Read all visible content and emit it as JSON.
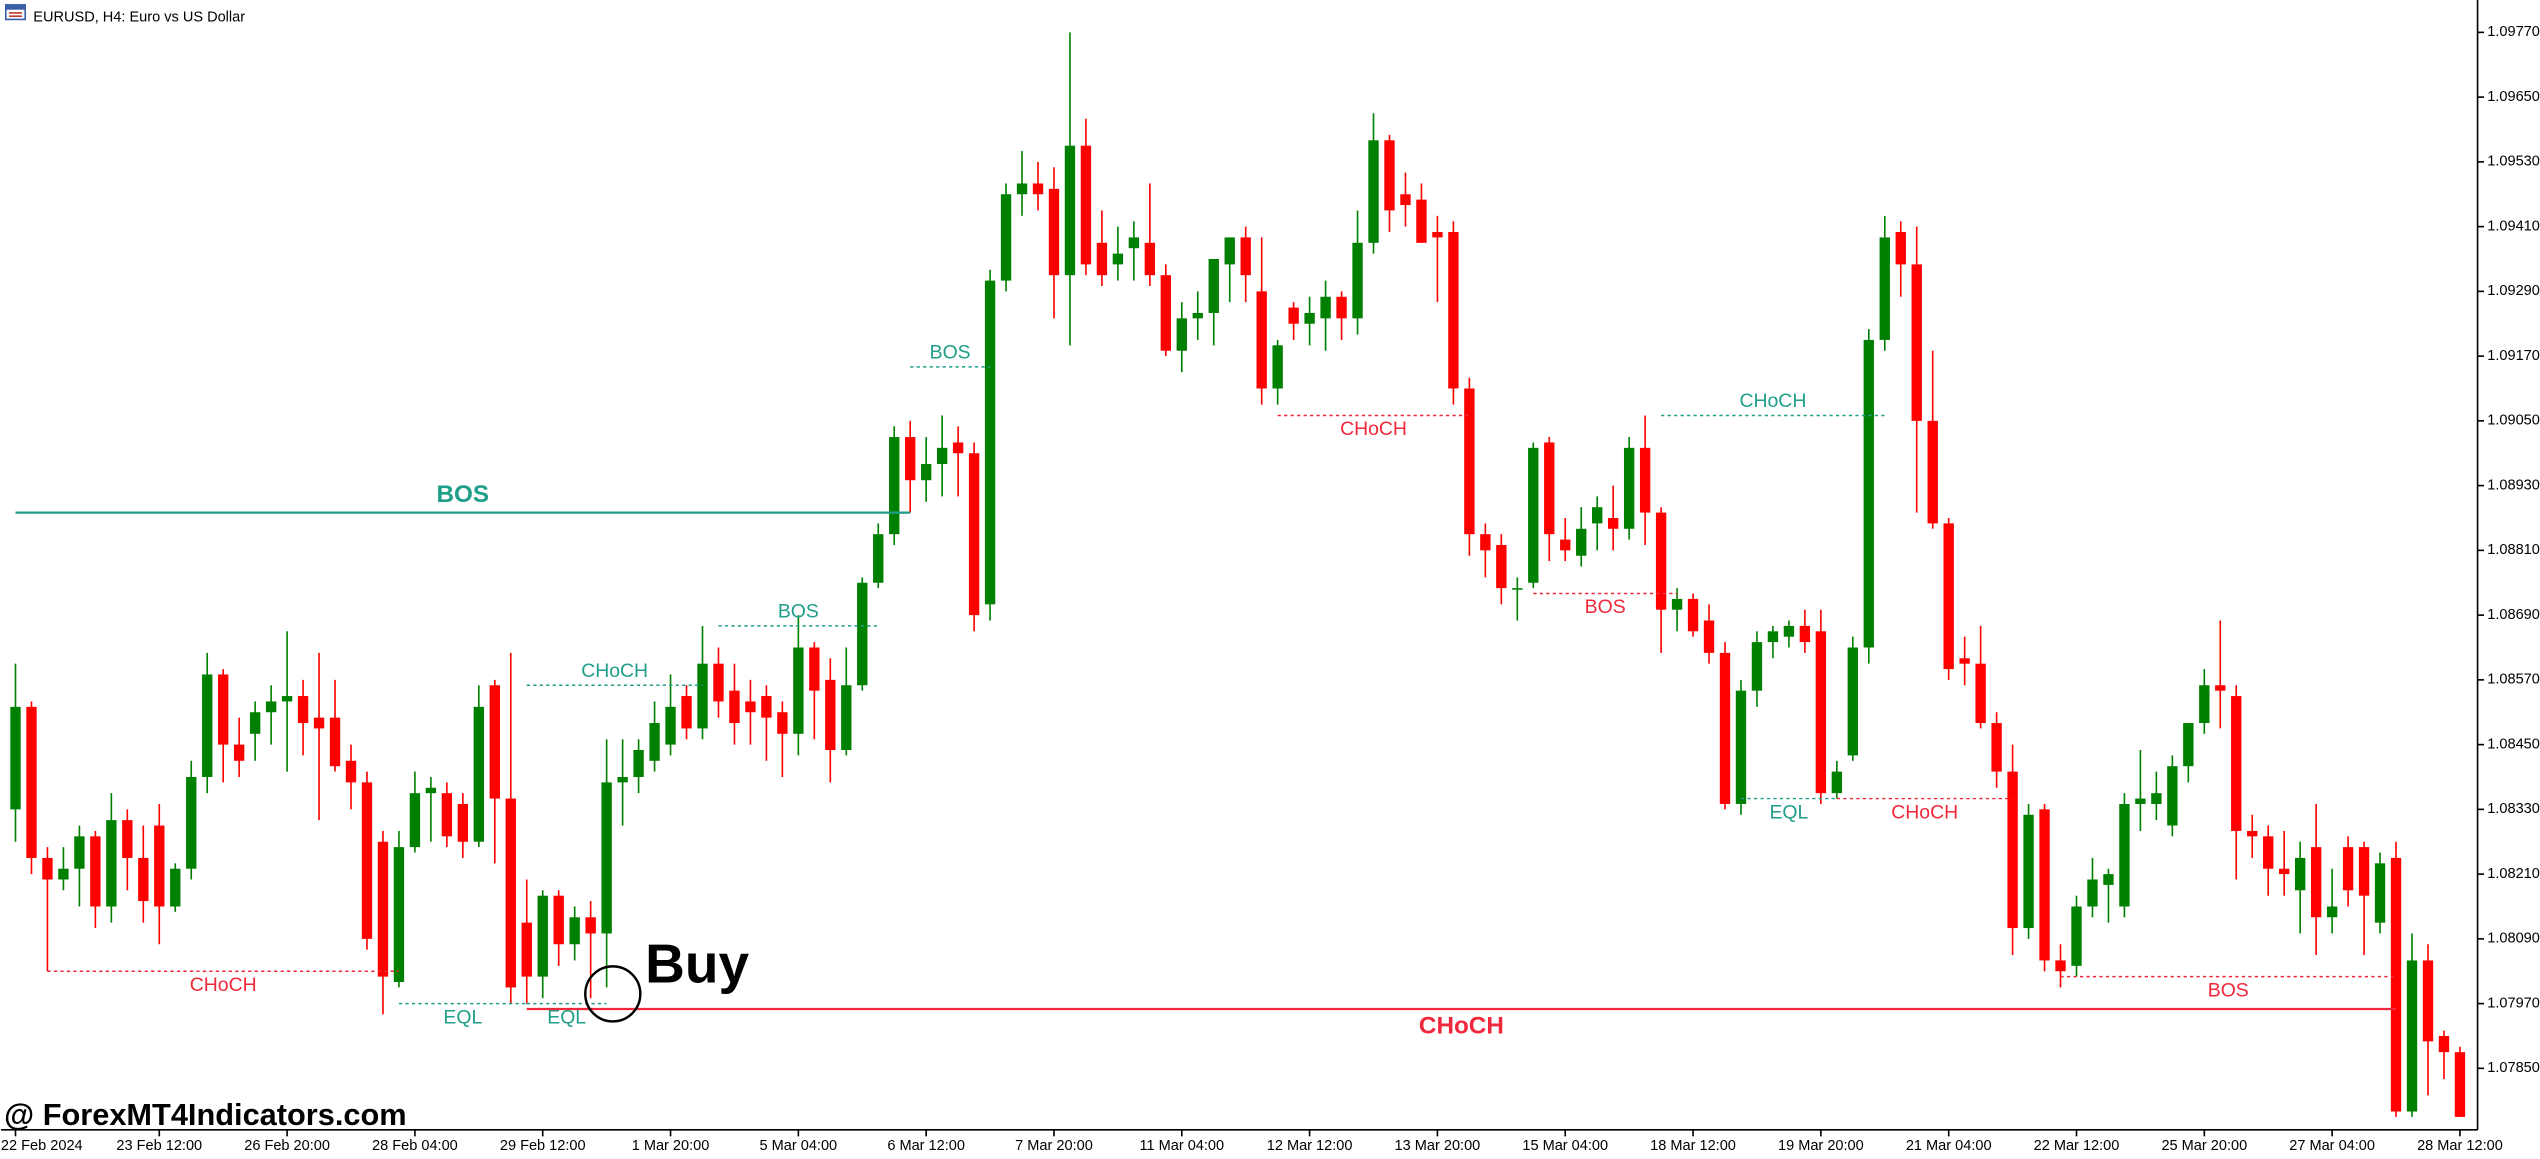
{
  "chart_data": {
    "type": "candlestick",
    "title": "EURUSD, H4:  Euro vs US Dollar",
    "watermark": "@ ForexMT4Indicators.com",
    "signal": "Buy",
    "up_color": "#008000",
    "down_color": "#ff0000",
    "categories": [
      "22 Feb 2024",
      null,
      null,
      null,
      null,
      null,
      null,
      null,
      null,
      "23 Feb 12:00",
      null,
      null,
      null,
      null,
      null,
      null,
      null,
      "26 Feb 20:00",
      null,
      null,
      null,
      null,
      null,
      null,
      null,
      "28 Feb 04:00",
      null,
      null,
      null,
      null,
      null,
      null,
      null,
      "29 Feb 12:00",
      null,
      null,
      null,
      null,
      null,
      null,
      null,
      "1 Mar 20:00",
      null,
      null,
      null,
      null,
      null,
      null,
      null,
      "5 Mar 04:00",
      null,
      null,
      null,
      null,
      null,
      null,
      null,
      "6 Mar 12:00",
      null,
      null,
      null,
      null,
      null,
      null,
      null,
      "7 Mar 20:00",
      null,
      null,
      null,
      null,
      null,
      null,
      null,
      "11 Mar 04:00",
      null,
      null,
      null,
      null,
      null,
      null,
      null,
      "12 Mar 12:00",
      null,
      null,
      null,
      null,
      null,
      null,
      null,
      "13 Mar 20:00",
      null,
      null,
      null,
      null,
      null,
      null,
      null,
      "15 Mar 04:00",
      null,
      null,
      null,
      null,
      null,
      null,
      null,
      "18 Mar 12:00",
      null,
      null,
      null,
      null,
      null,
      null,
      null,
      "19 Mar 20:00",
      null,
      null,
      null,
      null,
      null,
      null,
      null,
      "21 Mar 04:00",
      null,
      null,
      null,
      null,
      null,
      null,
      null,
      "22 Mar 12:00",
      null,
      null,
      null,
      null,
      null,
      null,
      null,
      "25 Mar 20:00",
      null,
      null,
      null,
      null,
      null,
      null,
      null,
      "27 Mar 04:00",
      null,
      null,
      null,
      null,
      null,
      null,
      null,
      "28 Mar 12:00"
    ],
    "open": [
      1.0833,
      1.0852,
      1.0824,
      1.082,
      1.0822,
      1.0828,
      1.0815,
      1.0831,
      1.0824,
      1.083,
      1.0815,
      1.0822,
      1.0839,
      1.0858,
      1.0845,
      1.0847,
      1.0851,
      1.0853,
      1.0854,
      1.085,
      1.085,
      1.0842,
      1.0838,
      1.0827,
      1.0801,
      1.0826,
      1.0836,
      1.0836,
      1.0834,
      1.0827,
      1.0856,
      1.0835,
      1.0812,
      1.0802,
      1.0817,
      1.0808,
      1.0813,
      1.081,
      1.0838,
      1.0839,
      1.0842,
      1.0845,
      1.0854,
      1.0848,
      1.086,
      1.0855,
      1.0853,
      1.0854,
      1.0851,
      1.0847,
      1.0863,
      1.0857,
      1.0844,
      1.0856,
      1.0875,
      1.0884,
      1.0902,
      1.0894,
      1.0897,
      1.0901,
      1.0899,
      1.0871,
      1.0931,
      1.0947,
      1.0949,
      1.0948,
      1.0932,
      1.0956,
      1.0938,
      1.0934,
      1.0937,
      1.0938,
      1.0932,
      1.0918,
      1.0924,
      1.0925,
      1.0934,
      1.0939,
      1.0929,
      1.0911,
      1.0926,
      1.0923,
      1.0924,
      1.0928,
      1.0924,
      1.0938,
      1.0957,
      1.0947,
      1.0946,
      1.094,
      1.094,
      1.0911,
      1.0884,
      1.0882,
      1.0874,
      1.0875,
      1.0901,
      1.0883,
      1.088,
      1.0886,
      1.0887,
      1.0885,
      1.09,
      1.0888,
      1.087,
      1.0872,
      1.0868,
      1.0862,
      1.0834,
      1.0855,
      1.0864,
      1.0865,
      1.0867,
      1.0866,
      1.0836,
      1.0843,
      1.0863,
      1.092,
      1.094,
      1.0934,
      1.0905,
      1.0886,
      1.0861,
      1.086,
      1.0849,
      1.084,
      1.0811,
      1.0833,
      1.0805,
      1.0804,
      1.0815,
      1.0819,
      1.0815,
      1.0834,
      1.0834,
      1.083,
      1.0841,
      1.0849,
      1.0856,
      1.0854,
      1.0829,
      1.0828,
      1.0822,
      1.0818,
      1.0826,
      1.0813,
      1.0826,
      1.0826,
      1.0812,
      1.0824,
      1.0777,
      1.0805,
      1.0791,
      1.0788
    ],
    "high": [
      1.086,
      1.0853,
      1.0826,
      1.0826,
      1.083,
      1.0829,
      1.0836,
      1.0833,
      1.083,
      1.0834,
      1.0823,
      1.0842,
      1.0862,
      1.0859,
      1.085,
      1.0853,
      1.0856,
      1.0866,
      1.0857,
      1.0862,
      1.0857,
      1.0845,
      1.084,
      1.0829,
      1.0829,
      1.084,
      1.0839,
      1.0838,
      1.0836,
      1.0856,
      1.0857,
      1.0862,
      1.082,
      1.0818,
      1.0818,
      1.0815,
      1.0816,
      1.0846,
      1.0846,
      1.0846,
      1.0853,
      1.0858,
      1.0856,
      1.0867,
      1.0863,
      1.086,
      1.0857,
      1.0856,
      1.0853,
      1.0869,
      1.0864,
      1.0861,
      1.0863,
      1.0876,
      1.0886,
      1.0904,
      1.0905,
      1.0902,
      1.0906,
      1.0904,
      1.0901,
      1.0933,
      1.0949,
      1.0955,
      1.0953,
      1.0952,
      1.0977,
      1.0961,
      1.0944,
      1.0941,
      1.0942,
      1.0949,
      1.0934,
      1.0927,
      1.0929,
      1.0935,
      1.0939,
      1.0941,
      1.0939,
      1.092,
      1.0927,
      1.0928,
      1.0931,
      1.0929,
      1.0944,
      1.0962,
      1.0958,
      1.0951,
      1.0949,
      1.0943,
      1.0942,
      1.0913,
      1.0886,
      1.0884,
      1.0876,
      1.0901,
      1.0902,
      1.0887,
      1.0889,
      1.0891,
      1.0893,
      1.0902,
      1.0906,
      1.0889,
      1.0874,
      1.0873,
      1.0871,
      1.0864,
      1.0857,
      1.0866,
      1.0867,
      1.0868,
      1.087,
      1.087,
      1.0842,
      1.0865,
      1.0922,
      1.0943,
      1.0942,
      1.0941,
      1.0918,
      1.0887,
      1.0865,
      1.0867,
      1.0851,
      1.0845,
      1.0834,
      1.0834,
      1.0808,
      1.0817,
      1.0824,
      1.0822,
      1.0836,
      1.0844,
      1.084,
      1.0843,
      1.0848,
      1.0859,
      1.0868,
      1.0856,
      1.0832,
      1.083,
      1.0829,
      1.0827,
      1.0834,
      1.0822,
      1.0828,
      1.0827,
      1.0825,
      1.0827,
      1.081,
      1.0808,
      1.0792,
      1.0789
    ],
    "low": [
      1.0827,
      1.0821,
      1.0803,
      1.0818,
      1.0815,
      1.0811,
      1.0812,
      1.0818,
      1.0812,
      1.0808,
      1.0814,
      1.082,
      1.0836,
      1.0838,
      1.0839,
      1.0842,
      1.0845,
      1.084,
      1.0843,
      1.0831,
      1.084,
      1.0833,
      1.0807,
      1.0795,
      1.08,
      1.0825,
      1.0827,
      1.0826,
      1.0824,
      1.0826,
      1.0823,
      1.0797,
      1.0797,
      1.0798,
      1.0804,
      1.0805,
      1.0798,
      1.08,
      1.083,
      1.0836,
      1.084,
      1.0843,
      1.0846,
      1.0846,
      1.085,
      1.0845,
      1.0845,
      1.0842,
      1.0839,
      1.0843,
      1.0846,
      1.0838,
      1.0843,
      1.0855,
      1.0874,
      1.0882,
      1.0888,
      1.089,
      1.0891,
      1.0891,
      1.0866,
      1.0868,
      1.0929,
      1.0943,
      1.0944,
      1.0924,
      1.0919,
      1.0932,
      1.093,
      1.0931,
      1.0931,
      1.093,
      1.0917,
      1.0914,
      1.092,
      1.0919,
      1.0927,
      1.0927,
      1.0908,
      1.0908,
      1.092,
      1.0919,
      1.0918,
      1.092,
      1.0921,
      1.0936,
      1.094,
      1.0941,
      1.0938,
      1.0927,
      1.0908,
      1.088,
      1.0876,
      1.0871,
      1.0868,
      1.0874,
      1.0879,
      1.0879,
      1.0878,
      1.0881,
      1.0881,
      1.0883,
      1.0882,
      1.0862,
      1.0866,
      1.0865,
      1.086,
      1.0833,
      1.0832,
      1.0852,
      1.0861,
      1.0863,
      1.0862,
      1.0834,
      1.0835,
      1.0842,
      1.086,
      1.0918,
      1.0928,
      1.0888,
      1.0885,
      1.0857,
      1.0856,
      1.0848,
      1.0837,
      1.0806,
      1.0809,
      1.0803,
      1.08,
      1.0802,
      1.0813,
      1.0812,
      1.0813,
      1.0829,
      1.0831,
      1.0828,
      1.0838,
      1.0847,
      1.0848,
      1.082,
      1.0824,
      1.0817,
      1.0817,
      1.081,
      1.0806,
      1.081,
      1.0815,
      1.0806,
      1.081,
      1.0776,
      1.0776,
      1.078,
      1.0783,
      1.0776
    ],
    "close": [
      1.0852,
      1.0824,
      1.082,
      1.0822,
      1.0828,
      1.0815,
      1.0831,
      1.0824,
      1.0816,
      1.0815,
      1.0822,
      1.0839,
      1.0858,
      1.0845,
      1.0842,
      1.0851,
      1.0853,
      1.0854,
      1.0849,
      1.0848,
      1.0841,
      1.0838,
      1.0809,
      1.0802,
      1.0826,
      1.0836,
      1.0837,
      1.0828,
      1.0827,
      1.0852,
      1.0835,
      1.08,
      1.0802,
      1.0817,
      1.0808,
      1.0813,
      1.081,
      1.0838,
      1.0839,
      1.0844,
      1.0849,
      1.0852,
      1.0848,
      1.086,
      1.0853,
      1.0849,
      1.0851,
      1.085,
      1.0847,
      1.0863,
      1.0855,
      1.0844,
      1.0856,
      1.0875,
      1.0884,
      1.0902,
      1.0894,
      1.0897,
      1.09,
      1.0899,
      1.0869,
      1.0931,
      1.0947,
      1.0949,
      1.0947,
      1.0932,
      1.0956,
      1.0934,
      1.0932,
      1.0936,
      1.0939,
      1.0932,
      1.0918,
      1.0924,
      1.0925,
      1.0935,
      1.0939,
      1.0932,
      1.0911,
      1.0919,
      1.0923,
      1.0925,
      1.0928,
      1.0924,
      1.0938,
      1.0957,
      1.0944,
      1.0945,
      1.0938,
      1.0939,
      1.0911,
      1.0884,
      1.0881,
      1.0874,
      1.0874,
      1.09,
      1.0884,
      1.0881,
      1.0885,
      1.0889,
      1.0885,
      1.09,
      1.0888,
      1.087,
      1.0872,
      1.0866,
      1.0862,
      1.0834,
      1.0855,
      1.0864,
      1.0866,
      1.0867,
      1.0864,
      1.0836,
      1.084,
      1.0863,
      1.092,
      1.0939,
      1.0934,
      1.0905,
      1.0886,
      1.0859,
      1.086,
      1.0849,
      1.084,
      1.0811,
      1.0832,
      1.0805,
      1.0803,
      1.0815,
      1.082,
      1.0821,
      1.0834,
      1.0835,
      1.0836,
      1.0841,
      1.0849,
      1.0856,
      1.0855,
      1.0829,
      1.0828,
      1.0822,
      1.0821,
      1.0824,
      1.0813,
      1.0815,
      1.0818,
      1.0817,
      1.0823,
      1.0777,
      1.0805,
      1.079,
      1.0788,
      1.0776
    ],
    "ylim": [
      1.07736,
      1.0983
    ],
    "yticks": [
      {
        "value": 1.0785,
        "label": "1.07850"
      },
      {
        "value": 1.0797,
        "label": "1.07970"
      },
      {
        "value": 1.0809,
        "label": "1.08090"
      },
      {
        "value": 1.0821,
        "label": "1.08210"
      },
      {
        "value": 1.0833,
        "label": "1.08330"
      },
      {
        "value": 1.0845,
        "label": "1.08450"
      },
      {
        "value": 1.0857,
        "label": "1.08570"
      },
      {
        "value": 1.0869,
        "label": "1.08690"
      },
      {
        "value": 1.0881,
        "label": "1.08810"
      },
      {
        "value": 1.0893,
        "label": "1.08930"
      },
      {
        "value": 1.0905,
        "label": "1.09050"
      },
      {
        "value": 1.0917,
        "label": "1.09170"
      },
      {
        "value": 1.0929,
        "label": "1.09290"
      },
      {
        "value": 1.0941,
        "label": "1.09410"
      },
      {
        "value": 1.0953,
        "label": "1.09530"
      },
      {
        "value": 1.0965,
        "label": "1.09650"
      },
      {
        "value": 1.0977,
        "label": "1.09770"
      }
    ],
    "levels": [
      {
        "label": "BOS",
        "price": 1.0888,
        "start": 0,
        "end": 56,
        "color": "#1f9e89",
        "style": "solid",
        "bold": true,
        "label_position": "above"
      },
      {
        "label": "CHoCH",
        "price": 1.0803,
        "start": 2,
        "end": 24,
        "color": "#f0283c",
        "style": "dotted",
        "bold": false,
        "label_position": "below"
      },
      {
        "label": "EQL",
        "price": 1.0797,
        "start": 24,
        "end": 32,
        "color": "#1f9e89",
        "style": "dotted",
        "bold": false,
        "label_position": "below"
      },
      {
        "label": "EQL",
        "price": 1.0797,
        "start": 32,
        "end": 37,
        "color": "#1f9e89",
        "style": "dotted",
        "bold": false,
        "label_position": "below"
      },
      {
        "label": "CHoCH",
        "price": 1.0856,
        "start": 32,
        "end": 43,
        "color": "#1f9e89",
        "style": "dotted",
        "bold": false,
        "label_position": "above"
      },
      {
        "label": "BOS",
        "price": 1.0867,
        "start": 44,
        "end": 54,
        "color": "#1f9e89",
        "style": "dotted",
        "bold": false,
        "label_position": "above"
      },
      {
        "label": "BOS",
        "price": 1.0915,
        "start": 56,
        "end": 61,
        "color": "#1f9e89",
        "style": "dotted",
        "bold": false,
        "label_position": "above"
      },
      {
        "label": "CHoCH",
        "price": 1.0906,
        "start": 79,
        "end": 91,
        "color": "#f0283c",
        "style": "dotted",
        "bold": false,
        "label_position": "below"
      },
      {
        "label": "BOS",
        "price": 1.0873,
        "start": 95,
        "end": 104,
        "color": "#f0283c",
        "style": "dotted",
        "bold": false,
        "label_position": "below"
      },
      {
        "label": "CHoCH",
        "price": 1.0906,
        "start": 103,
        "end": 117,
        "color": "#1f9e89",
        "style": "dotted",
        "bold": false,
        "label_position": "above"
      },
      {
        "label": "EQL",
        "price": 1.0835,
        "start": 108,
        "end": 114,
        "color": "#1f9e89",
        "style": "dotted",
        "bold": false,
        "label_position": "below"
      },
      {
        "label": "CHoCH",
        "price": 1.0835,
        "start": 114,
        "end": 125,
        "color": "#f0283c",
        "style": "dotted",
        "bold": false,
        "label_position": "below"
      },
      {
        "label": "BOS",
        "price": 1.0802,
        "start": 128,
        "end": 149,
        "color": "#f0283c",
        "style": "dotted",
        "bold": false,
        "label_position": "below"
      },
      {
        "label": "CHoCH",
        "price": 1.0796,
        "start": 32,
        "end": 149,
        "color": "#f0283c",
        "style": "solid",
        "bold": true,
        "label_position": "below"
      }
    ]
  }
}
